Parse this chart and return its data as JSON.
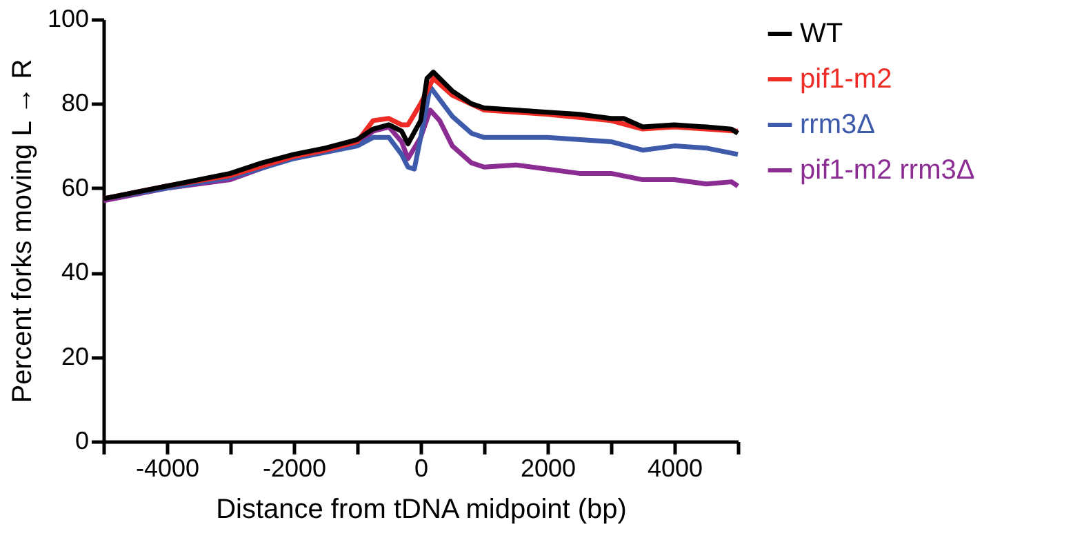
{
  "chart_data": {
    "type": "line",
    "xlabel": "Distance from tDNA midpoint (bp)",
    "ylabel": "Percent forks moving L → R",
    "xlim": [
      -5000,
      5000
    ],
    "ylim": [
      0,
      100
    ],
    "xticks": [
      {
        "value": -5000,
        "label": null
      },
      -4000,
      {
        "value": -3000,
        "label": null
      },
      -2000,
      {
        "value": -1000,
        "label": null
      },
      0,
      {
        "value": 1000,
        "label": null
      },
      2000,
      {
        "value": 3000,
        "label": null
      },
      4000,
      {
        "value": 5000,
        "label": null
      }
    ],
    "yticks": [
      0,
      20,
      40,
      60,
      80,
      100
    ],
    "grid": false,
    "legend": "right",
    "marker": "none",
    "line_style": "solid",
    "series": [
      {
        "name": "WT",
        "color": "#000000",
        "x": [
          -5000,
          -4000,
          -3500,
          -3000,
          -2500,
          -2000,
          -1500,
          -1000,
          -750,
          -500,
          -300,
          -200,
          0,
          100,
          200,
          500,
          800,
          1000,
          1500,
          2000,
          2500,
          3000,
          3200,
          3500,
          4000,
          4500,
          4900,
          5000
        ],
        "values": [
          57.5,
          60.5,
          62,
          63.5,
          66,
          68,
          69.5,
          71.5,
          74,
          75,
          73.5,
          70.5,
          76,
          86,
          87.5,
          83,
          80,
          79,
          78.5,
          78,
          77.5,
          76.5,
          76.5,
          74.5,
          75,
          74.5,
          74,
          73
        ]
      },
      {
        "name": "pif1-m2",
        "color": "#ee2b24",
        "x": [
          -5000,
          -4000,
          -3000,
          -2000,
          -1500,
          -1000,
          -750,
          -500,
          -300,
          -200,
          0,
          200,
          500,
          1000,
          2000,
          3000,
          3500,
          4000,
          5000
        ],
        "values": [
          57.5,
          60.5,
          63,
          67.5,
          69,
          71,
          76,
          76.5,
          75,
          75,
          80,
          86,
          82,
          78.5,
          77.5,
          76,
          74,
          74.5,
          73.5
        ]
      },
      {
        "name": "rrm3Δ",
        "color": "#3e5bab",
        "x": [
          -5000,
          -4000,
          -3000,
          -2000,
          -1500,
          -1000,
          -750,
          -500,
          -300,
          -200,
          -100,
          0,
          150,
          500,
          800,
          1000,
          2000,
          3000,
          3500,
          4000,
          4500,
          5000
        ],
        "values": [
          57.5,
          60,
          62.5,
          67,
          68.5,
          70,
          72,
          72,
          68,
          65,
          64.5,
          72,
          84,
          77,
          73,
          72,
          72,
          71,
          69,
          70,
          69.5,
          68
        ]
      },
      {
        "name": "pif1-m2 rrm3Δ",
        "color": "#8b2c93",
        "x": [
          -5000,
          -4000,
          -3000,
          -2000,
          -1000,
          -750,
          -500,
          -300,
          -200,
          0,
          150,
          300,
          500,
          800,
          1000,
          1500,
          2000,
          2500,
          3000,
          3500,
          4000,
          4500,
          4900,
          5000
        ],
        "values": [
          57,
          60,
          62,
          67.5,
          70.5,
          73.5,
          74.5,
          71,
          67,
          72,
          78.5,
          76,
          70,
          66,
          65,
          65.5,
          64.5,
          63.5,
          63.5,
          62,
          62,
          61,
          61.5,
          60.5
        ]
      }
    ]
  }
}
